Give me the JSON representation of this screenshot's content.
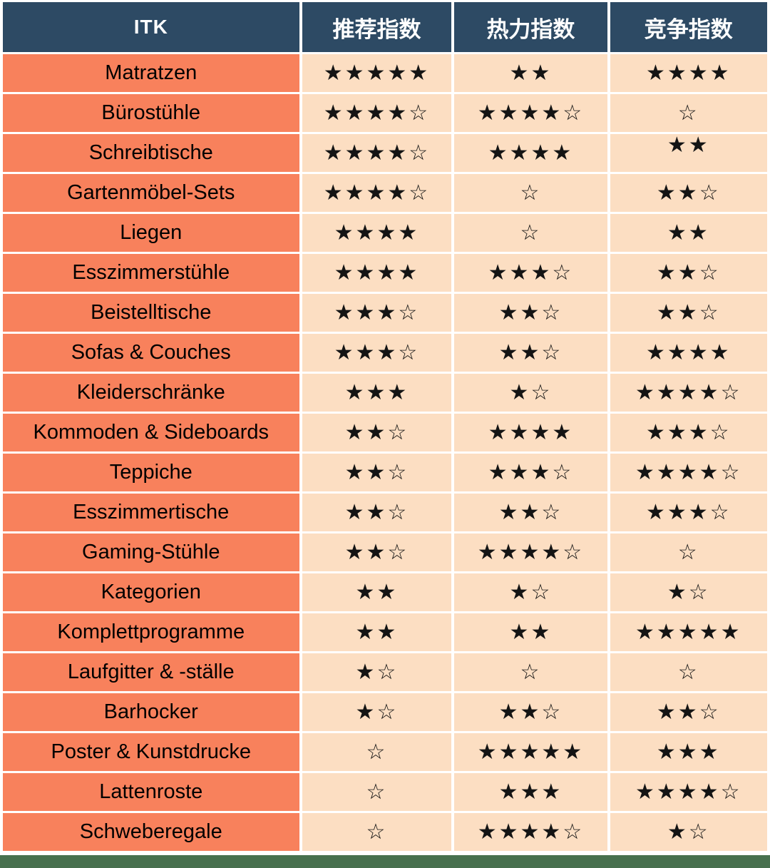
{
  "header": {
    "columns": [
      "ITK",
      "推荐指数",
      "热力指数",
      "竞争指数"
    ]
  },
  "table": {
    "rows": [
      {
        "label": "Matratzen",
        "stars": [
          "★★★★★",
          "★★",
          "★★★★"
        ]
      },
      {
        "label": "Bürostühle",
        "stars": [
          "★★★★☆",
          "★★★★☆",
          "☆"
        ]
      },
      {
        "label": "Schreibtische",
        "stars": [
          "★★★★☆",
          "★★★★",
          "★★"
        ]
      },
      {
        "label": "Gartenmöbel-Sets",
        "stars": [
          "★★★★☆",
          "☆",
          "★★☆"
        ]
      },
      {
        "label": "Liegen",
        "stars": [
          "★★★★",
          "☆",
          "★★"
        ]
      },
      {
        "label": "Esszimmerstühle",
        "stars": [
          "★★★★",
          "★★★☆",
          "★★☆"
        ]
      },
      {
        "label": "Beistelltische",
        "stars": [
          "★★★☆",
          "★★☆",
          "★★☆"
        ]
      },
      {
        "label": "Sofas & Couches",
        "stars": [
          "★★★☆",
          "★★☆",
          "★★★★"
        ]
      },
      {
        "label": "Kleiderschränke",
        "stars": [
          "★★★",
          "★☆",
          "★★★★☆"
        ]
      },
      {
        "label": "Kommoden & Sideboards",
        "stars": [
          "★★☆",
          "★★★★",
          "★★★☆"
        ]
      },
      {
        "label": "Teppiche",
        "stars": [
          "★★☆",
          "★★★☆",
          "★★★★☆"
        ]
      },
      {
        "label": "Esszimmertische",
        "stars": [
          "★★☆",
          "★★☆",
          "★★★☆"
        ]
      },
      {
        "label": "Gaming-Stühle",
        "stars": [
          "★★☆",
          "★★★★☆",
          "☆"
        ]
      },
      {
        "label": "Kategorien",
        "stars": [
          "★★",
          "★☆",
          "★☆"
        ]
      },
      {
        "label": "Komplettprogramme",
        "stars": [
          "★★",
          "★★",
          "★★★★★"
        ]
      },
      {
        "label": "Laufgitter & -ställe",
        "stars": [
          "★☆",
          "☆",
          "☆"
        ]
      },
      {
        "label": "Barhocker",
        "stars": [
          "★☆",
          "★★☆",
          "★★☆"
        ]
      },
      {
        "label": "Poster & Kunstdrucke",
        "stars": [
          "☆",
          "★★★★★",
          "★★★"
        ]
      },
      {
        "label": "Lattenroste",
        "stars": [
          "☆",
          "★★★",
          "★★★★☆"
        ]
      },
      {
        "label": "Schweberegale",
        "stars": [
          "☆",
          "★★★★☆",
          "★☆"
        ]
      }
    ]
  },
  "colors": {
    "header_bg": "#2D4A64",
    "header_text": "#FFFFFF",
    "category_bg": "#F8815C",
    "rating_bg": "#FCDEC2",
    "star": "#141414",
    "gridline": "#FFFFFF",
    "bottom_strip": "#47704E"
  },
  "chart_data": {
    "type": "table",
    "title": "ITK Kategorie-Indizes (Sternebewertung)",
    "columns": [
      "ITK",
      "推荐指数",
      "热力指数",
      "竞争指数"
    ],
    "rating_encoding": "[filled_stars, outline_stars] per index column",
    "rows": [
      {
        "category": "Matratzen",
        "ratings": [
          [
            5,
            0
          ],
          [
            2,
            0
          ],
          [
            4,
            0
          ]
        ]
      },
      {
        "category": "Bürostühle",
        "ratings": [
          [
            4,
            1
          ],
          [
            4,
            1
          ],
          [
            0,
            1
          ]
        ]
      },
      {
        "category": "Schreibtische",
        "ratings": [
          [
            4,
            1
          ],
          [
            4,
            0
          ],
          [
            2,
            0
          ]
        ]
      },
      {
        "category": "Gartenmöbel-Sets",
        "ratings": [
          [
            4,
            1
          ],
          [
            0,
            1
          ],
          [
            2,
            1
          ]
        ]
      },
      {
        "category": "Liegen",
        "ratings": [
          [
            4,
            0
          ],
          [
            0,
            1
          ],
          [
            2,
            0
          ]
        ]
      },
      {
        "category": "Esszimmerstühle",
        "ratings": [
          [
            4,
            0
          ],
          [
            3,
            1
          ],
          [
            2,
            1
          ]
        ]
      },
      {
        "category": "Beistelltische",
        "ratings": [
          [
            3,
            1
          ],
          [
            2,
            1
          ],
          [
            2,
            1
          ]
        ]
      },
      {
        "category": "Sofas & Couches",
        "ratings": [
          [
            3,
            1
          ],
          [
            2,
            1
          ],
          [
            4,
            0
          ]
        ]
      },
      {
        "category": "Kleiderschränke",
        "ratings": [
          [
            3,
            0
          ],
          [
            1,
            1
          ],
          [
            4,
            1
          ]
        ]
      },
      {
        "category": "Kommoden & Sideboards",
        "ratings": [
          [
            2,
            1
          ],
          [
            4,
            0
          ],
          [
            3,
            1
          ]
        ]
      },
      {
        "category": "Teppiche",
        "ratings": [
          [
            2,
            1
          ],
          [
            3,
            1
          ],
          [
            4,
            1
          ]
        ]
      },
      {
        "category": "Esszimmertische",
        "ratings": [
          [
            2,
            1
          ],
          [
            2,
            1
          ],
          [
            3,
            1
          ]
        ]
      },
      {
        "category": "Gaming-Stühle",
        "ratings": [
          [
            2,
            1
          ],
          [
            4,
            1
          ],
          [
            0,
            1
          ]
        ]
      },
      {
        "category": "Kategorien",
        "ratings": [
          [
            2,
            0
          ],
          [
            1,
            1
          ],
          [
            1,
            1
          ]
        ]
      },
      {
        "category": "Komplettprogramme",
        "ratings": [
          [
            2,
            0
          ],
          [
            2,
            0
          ],
          [
            5,
            0
          ]
        ]
      },
      {
        "category": "Laufgitter & -ställe",
        "ratings": [
          [
            1,
            1
          ],
          [
            0,
            1
          ],
          [
            0,
            1
          ]
        ]
      },
      {
        "category": "Barhocker",
        "ratings": [
          [
            1,
            1
          ],
          [
            2,
            1
          ],
          [
            2,
            1
          ]
        ]
      },
      {
        "category": "Poster & Kunstdrucke",
        "ratings": [
          [
            0,
            1
          ],
          [
            5,
            0
          ],
          [
            3,
            0
          ]
        ]
      },
      {
        "category": "Lattenroste",
        "ratings": [
          [
            0,
            1
          ],
          [
            3,
            0
          ],
          [
            4,
            1
          ]
        ]
      },
      {
        "category": "Schweberegale",
        "ratings": [
          [
            0,
            1
          ],
          [
            4,
            1
          ],
          [
            1,
            1
          ]
        ]
      }
    ]
  }
}
